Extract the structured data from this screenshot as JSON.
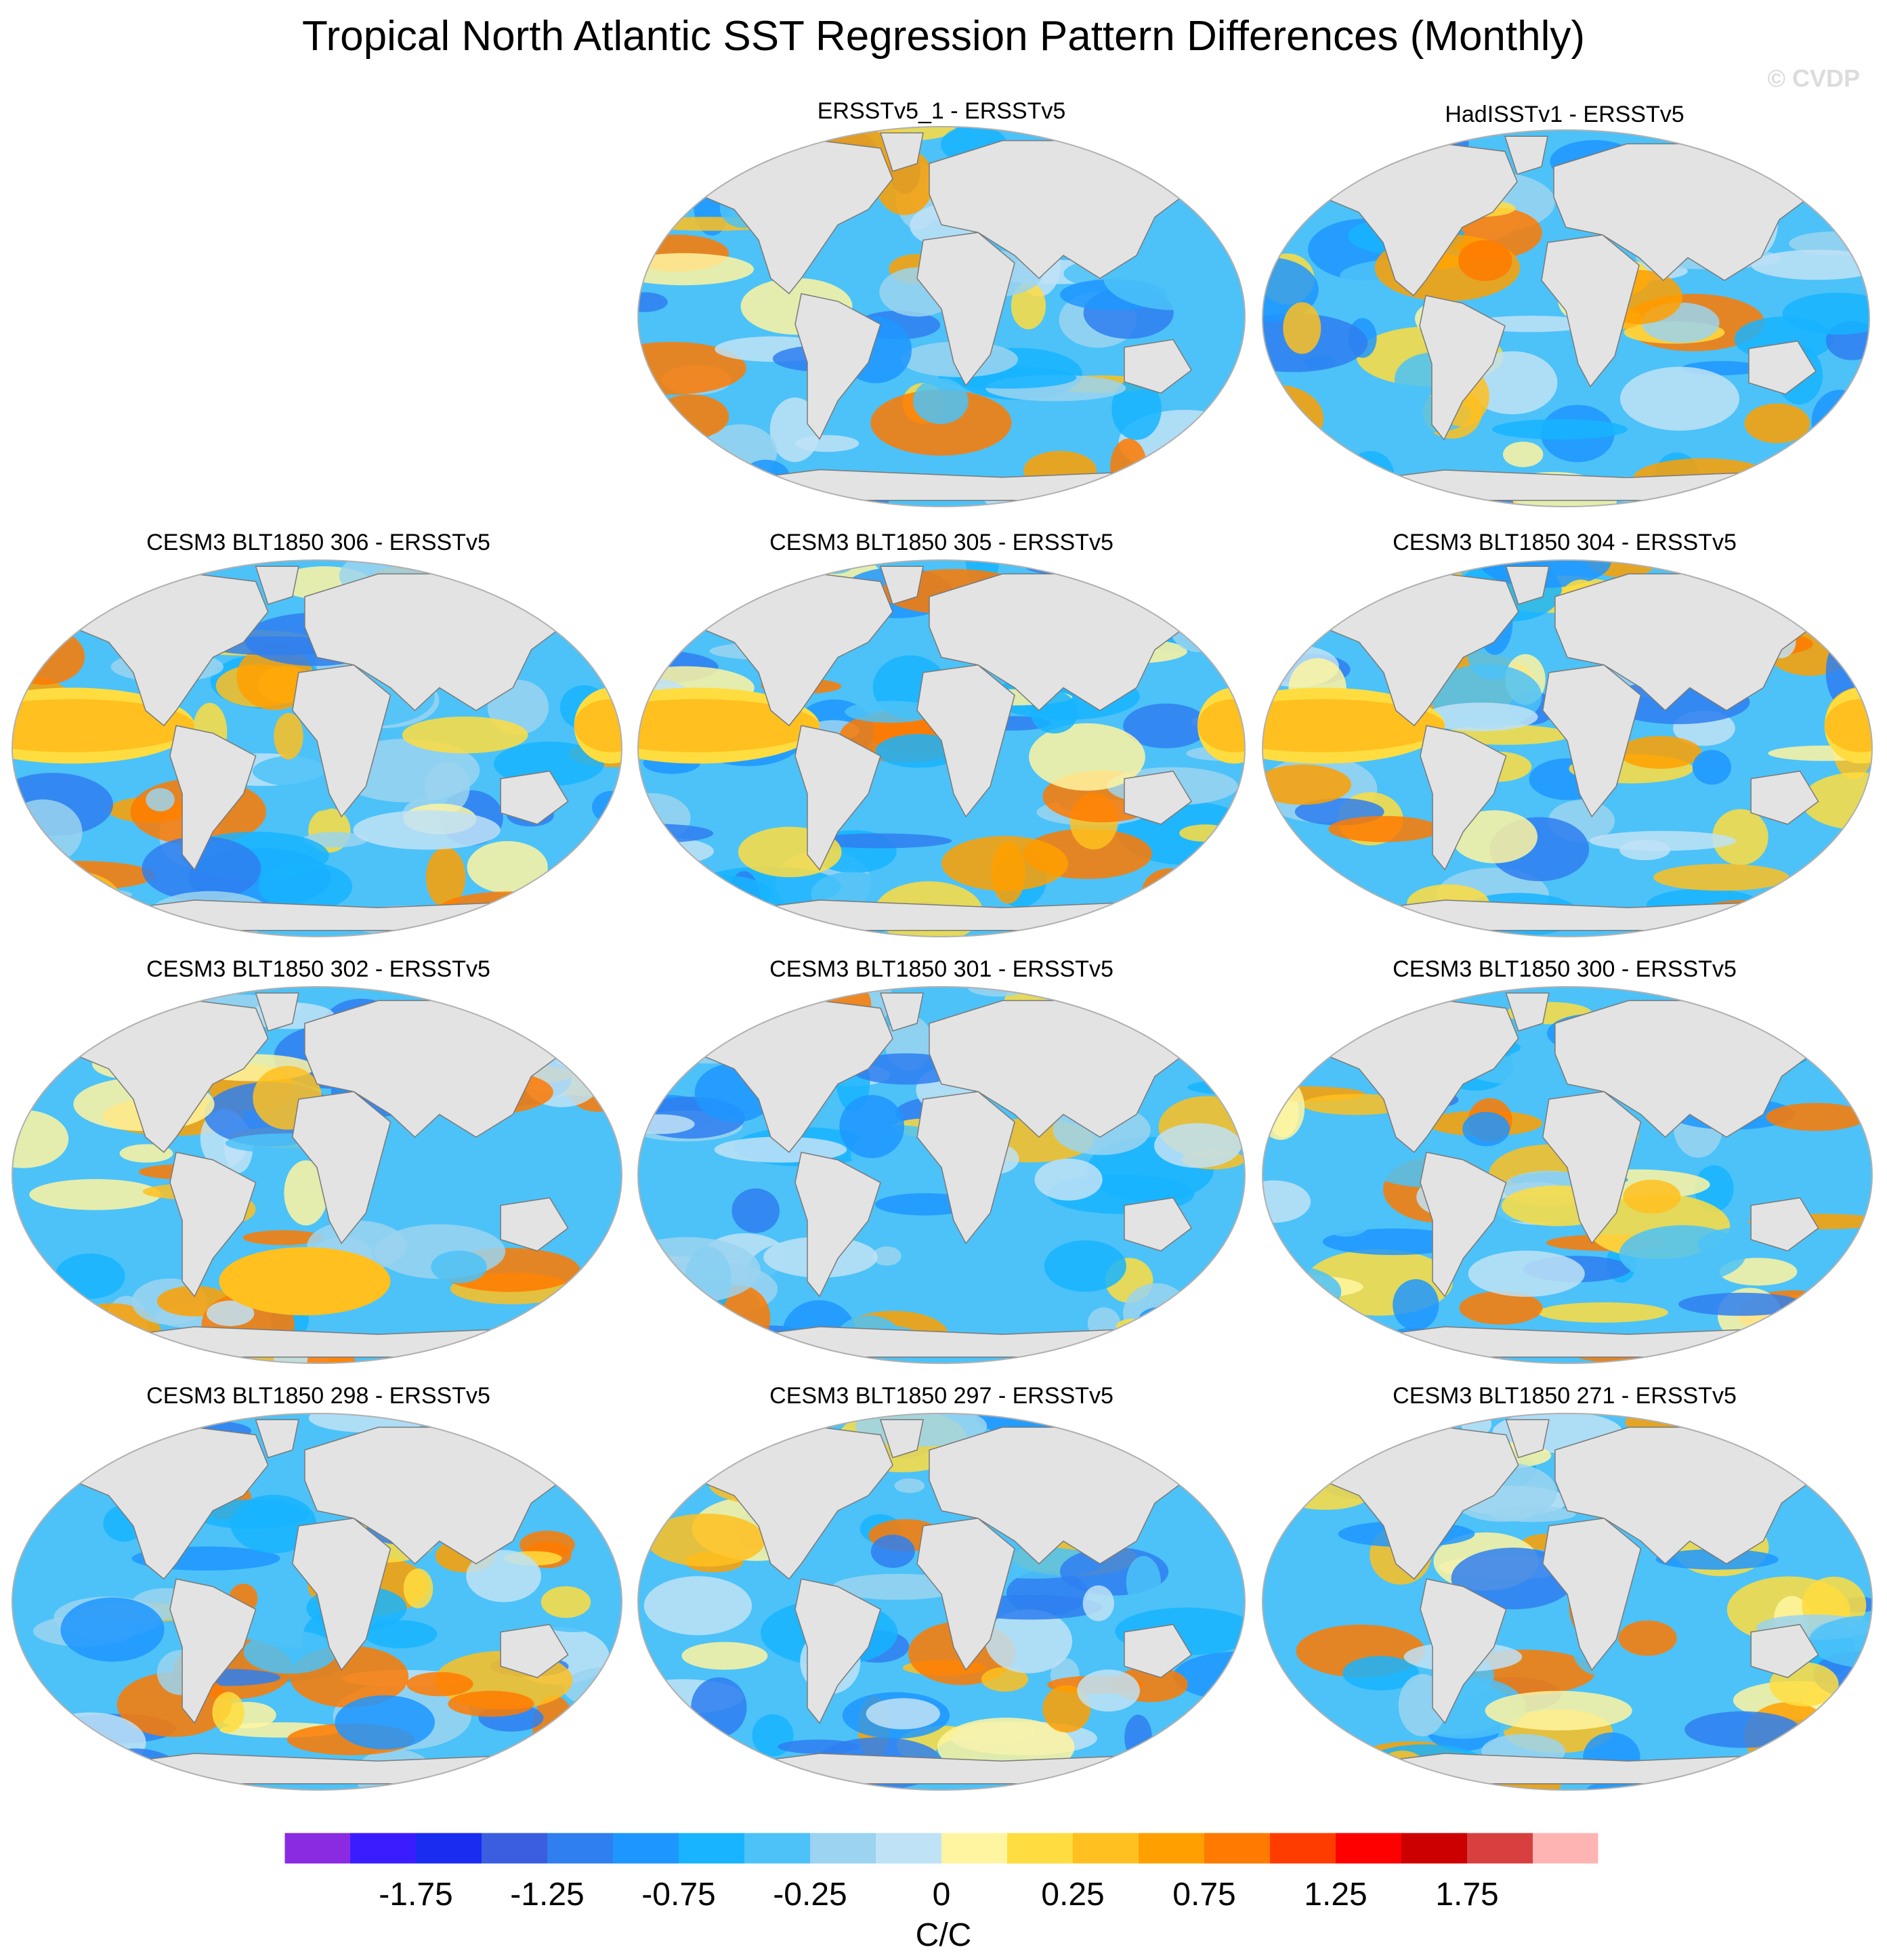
{
  "figure_title": "Tropical North Atlantic SST Regression Pattern Differences (Monthly)",
  "watermark": "© CVDP",
  "chart_data": {
    "type": "heatmap",
    "projection": "Robinson-like global maps",
    "title": "Tropical North Atlantic SST Regression Pattern Differences (Monthly)",
    "units": "C/C",
    "colorbar": {
      "tick_labels": [
        "-1.75",
        "-1.25",
        "-0.75",
        "-0.25",
        "0",
        "0.25",
        "0.75",
        "1.25",
        "1.75"
      ],
      "tick_values": [
        -1.75,
        -1.25,
        -0.75,
        -0.25,
        0,
        0.25,
        0.75,
        1.25,
        1.75
      ],
      "colors": [
        "#8a2be2",
        "#3b1cff",
        "#1a2cf0",
        "#3b5ee0",
        "#2f7ff0",
        "#1e96ff",
        "#18b4ff",
        "#4cc2f8",
        "#9bd3f0",
        "#bfe2f6",
        "#fff5a0",
        "#ffdd40",
        "#ffc020",
        "#ffa000",
        "#ff7a00",
        "#ff3c00",
        "#ff0000",
        "#cc0000",
        "#d84040",
        "#ffb4b4"
      ]
    },
    "panels": [
      {
        "title": "ERSSTv5_1 - ERSSTv5",
        "tone": "cool"
      },
      {
        "title": "HadISSTv1 - ERSSTv5",
        "tone": "mixed"
      },
      {
        "title": "CESM3 BLT1850 306 - ERSSTv5",
        "tone": "warm-pacific"
      },
      {
        "title": "CESM3 BLT1850 305 - ERSSTv5",
        "tone": "warm-pacific"
      },
      {
        "title": "CESM3 BLT1850 304 - ERSSTv5",
        "tone": "warm-pacific"
      },
      {
        "title": "CESM3 BLT1850 302 - ERSSTv5",
        "tone": "warm-south"
      },
      {
        "title": "CESM3 BLT1850 301 - ERSSTv5",
        "tone": "cool"
      },
      {
        "title": "CESM3 BLT1850 300 - ERSSTv5",
        "tone": "mixed"
      },
      {
        "title": "CESM3 BLT1850 298 - ERSSTv5",
        "tone": "mixed"
      },
      {
        "title": "CESM3 BLT1850 297 - ERSSTv5",
        "tone": "cool"
      },
      {
        "title": "CESM3 BLT1850 271 - ERSSTv5",
        "tone": "mixed"
      }
    ]
  }
}
